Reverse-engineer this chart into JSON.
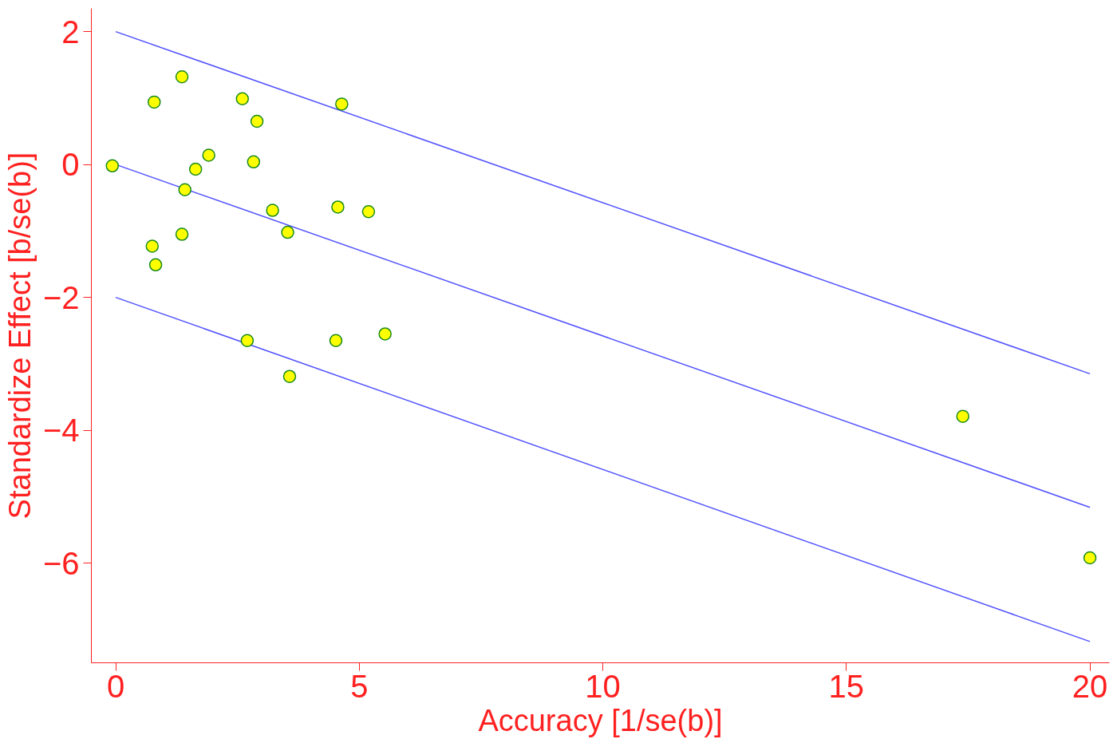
{
  "chart_data": {
    "type": "scatter",
    "xlabel": "Accuracy [1/se(b)]",
    "ylabel": "Standardize Effect [b/se(b)]",
    "xlim": [
      -0.5,
      20.4
    ],
    "ylim": [
      -7.5,
      2.35
    ],
    "xticks": [
      0,
      5,
      10,
      15,
      20
    ],
    "yticks": [
      2,
      0,
      -2,
      -4,
      -6
    ],
    "grid": false,
    "series": [
      {
        "type": "line",
        "color": "#5050ff",
        "x": [
          0,
          20
        ],
        "values": [
          2,
          -3.15
        ]
      },
      {
        "type": "line",
        "color": "#5050ff",
        "x": [
          0,
          20
        ],
        "values": [
          0,
          -5.16
        ]
      },
      {
        "type": "line",
        "color": "#5050ff",
        "x": [
          0,
          20
        ],
        "values": [
          -2,
          -7.18
        ]
      },
      {
        "marker": "circle",
        "color": "#ffff00",
        "x": [
          -0.07,
          0.79,
          1.36,
          2.6,
          2.9,
          4.64,
          1.91,
          1.64,
          2.83,
          1.42,
          3.22,
          4.56,
          5.19,
          3.53,
          1.36,
          0.75,
          0.82,
          2.7,
          4.52,
          5.53,
          3.57,
          17.39,
          20.0
        ],
        "values": [
          -0.02,
          0.94,
          1.32,
          0.99,
          0.65,
          0.91,
          0.14,
          -0.07,
          0.04,
          -0.38,
          -0.69,
          -0.64,
          -0.71,
          -1.02,
          -1.05,
          -1.23,
          -1.51,
          -2.65,
          -2.65,
          -2.55,
          -3.19,
          -3.79,
          -5.92
        ]
      }
    ]
  }
}
